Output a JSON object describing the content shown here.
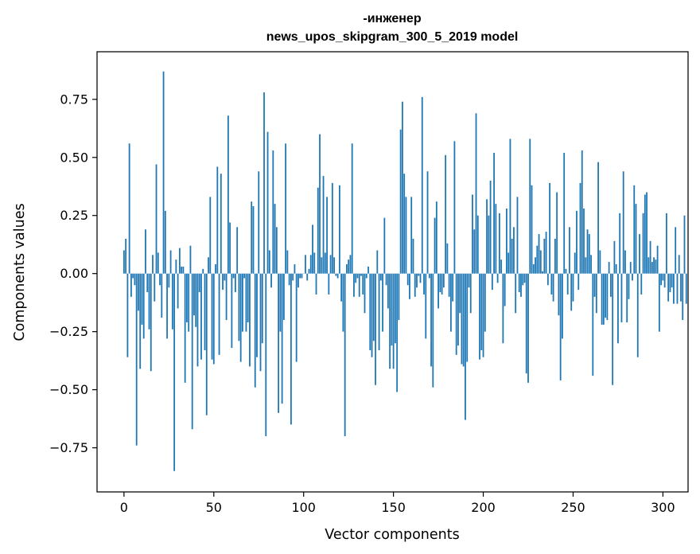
{
  "chart_data": {
    "type": "bar",
    "title_lines": [
      "-инженер",
      "news_upos_skipgram_300_5_2019 model"
    ],
    "xlabel": "Vector components",
    "ylabel": "Components values",
    "xlim": [
      -15,
      314
    ],
    "ylim": [
      -0.94,
      0.955
    ],
    "x_ticks": [
      0,
      50,
      100,
      150,
      200,
      250,
      300
    ],
    "y_ticks": [
      -0.75,
      -0.5,
      -0.25,
      0.0,
      0.25,
      0.5,
      0.75
    ],
    "y_tick_labels": [
      "−0.75",
      "−0.50",
      "−0.25",
      "0.00",
      "0.25",
      "0.50",
      "0.75"
    ],
    "bar_color": "#1f77b4",
    "grid": false,
    "legend": "none",
    "values": [
      0.1,
      0.15,
      -0.36,
      0.56,
      -0.1,
      -0.02,
      -0.05,
      -0.74,
      -0.16,
      -0.41,
      -0.22,
      -0.28,
      0.19,
      -0.08,
      -0.24,
      -0.42,
      0.08,
      -0.12,
      0.47,
      0.09,
      -0.05,
      -0.19,
      0.87,
      0.27,
      -0.28,
      -0.06,
      0.1,
      -0.24,
      -0.85,
      0.06,
      -0.15,
      0.11,
      0.03,
      0.03,
      -0.47,
      -0.21,
      -0.25,
      0.12,
      -0.67,
      -0.18,
      -0.23,
      -0.4,
      -0.08,
      -0.37,
      0.02,
      -0.33,
      -0.61,
      0.07,
      0.33,
      -0.37,
      -0.39,
      0.04,
      0.46,
      -0.35,
      0.43,
      -0.07,
      -0.03,
      -0.2,
      0.68,
      0.22,
      -0.32,
      -0.02,
      -0.08,
      0.2,
      -0.29,
      -0.38,
      -0.25,
      -0.02,
      -0.25,
      -0.21,
      -0.4,
      0.31,
      0.29,
      -0.49,
      -0.36,
      0.44,
      -0.42,
      -0.3,
      0.78,
      -0.7,
      0.61,
      0.1,
      -0.06,
      0.53,
      0.3,
      0.2,
      -0.6,
      -0.25,
      -0.56,
      -0.2,
      0.56,
      0.1,
      -0.05,
      -0.65,
      -0.03,
      0.04,
      -0.38,
      -0.06,
      -0.02,
      -0.02,
      0.0,
      0.08,
      -0.03,
      0.02,
      0.08,
      0.21,
      0.09,
      -0.09,
      0.37,
      0.6,
      0.07,
      0.42,
      0.09,
      0.33,
      -0.09,
      0.08,
      0.39,
      0.07,
      -0.01,
      -0.02,
      0.38,
      -0.12,
      -0.25,
      -0.7,
      0.04,
      0.06,
      0.08,
      0.56,
      -0.1,
      -0.04,
      -0.02,
      -0.1,
      -0.01,
      -0.09,
      -0.17,
      -0.02,
      0.03,
      -0.33,
      -0.36,
      -0.29,
      -0.48,
      0.1,
      -0.33,
      -0.03,
      -0.25,
      0.24,
      -0.05,
      -0.15,
      -0.41,
      -0.31,
      -0.41,
      -0.3,
      -0.51,
      -0.2,
      0.62,
      0.74,
      0.43,
      0.33,
      -0.05,
      -0.11,
      0.33,
      0.15,
      -0.1,
      -0.06,
      -0.01,
      -0.04,
      0.76,
      -0.09,
      -0.28,
      0.44,
      -0.02,
      -0.4,
      -0.49,
      0.24,
      0.31,
      -0.15,
      -0.08,
      -0.09,
      -0.06,
      0.51,
      0.13,
      -0.1,
      -0.25,
      -0.12,
      0.57,
      -0.35,
      -0.31,
      -0.17,
      -0.39,
      -0.4,
      -0.63,
      -0.38,
      -0.06,
      -0.17,
      0.34,
      0.19,
      0.69,
      0.25,
      -0.37,
      -0.33,
      -0.36,
      -0.25,
      0.32,
      0.25,
      0.4,
      -0.07,
      0.52,
      0.3,
      -0.04,
      0.26,
      0.06,
      -0.3,
      -0.14,
      0.28,
      0.09,
      0.58,
      0.15,
      0.2,
      -0.17,
      0.33,
      -0.08,
      -0.1,
      -0.05,
      -0.04,
      -0.43,
      -0.47,
      0.58,
      0.38,
      0.04,
      0.07,
      0.12,
      0.17,
      0.1,
      0.01,
      0.15,
      0.18,
      -0.05,
      0.39,
      -0.09,
      -0.12,
      0.15,
      0.35,
      -0.18,
      -0.46,
      -0.28,
      0.52,
      0.02,
      -0.09,
      0.2,
      -0.16,
      -0.12,
      0.09,
      0.27,
      -0.07,
      0.39,
      0.53,
      0.28,
      0.07,
      0.19,
      0.17,
      0.08,
      -0.44,
      -0.1,
      -0.17,
      0.48,
      0.1,
      -0.22,
      -0.22,
      -0.19,
      -0.2,
      0.05,
      -0.1,
      -0.48,
      0.14,
      0.04,
      -0.3,
      0.26,
      -0.21,
      0.44,
      0.1,
      -0.21,
      -0.11,
      0.05,
      -0.03,
      0.38,
      0.3,
      -0.36,
      0.17,
      -0.09,
      0.26,
      0.34,
      0.35,
      0.07,
      0.14,
      0.05,
      0.07,
      0.06,
      0.12,
      -0.25,
      -0.05,
      -0.03,
      -0.06,
      0.26,
      -0.12,
      -0.08,
      -0.06,
      -0.13,
      0.2,
      -0.13,
      0.08,
      -0.12,
      -0.2,
      0.25,
      -0.13
    ]
  }
}
